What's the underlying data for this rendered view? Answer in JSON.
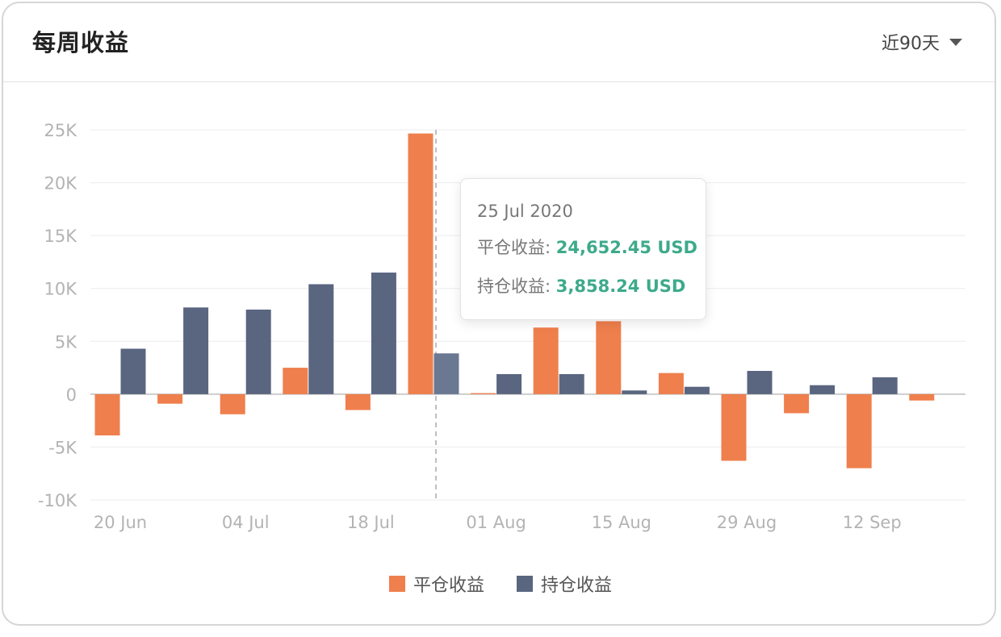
{
  "header": {
    "title": "每周收益",
    "range_label": "近90天"
  },
  "tooltip": {
    "date": "25 Jul 2020",
    "rows": [
      {
        "label": "平仓收益: ",
        "value": "24,652.45 USD"
      },
      {
        "label": "持仓收益: ",
        "value": "3,858.24 USD"
      }
    ]
  },
  "chart_data": {
    "type": "bar",
    "grid": true,
    "legend_position": "bottom-center",
    "ylim": [
      -10000,
      25000
    ],
    "y_ticks": [
      -10000,
      -5000,
      0,
      5000,
      10000,
      15000,
      20000,
      25000
    ],
    "y_tick_labels": [
      "-10K",
      "-5K",
      "0",
      "5K",
      "10K",
      "15K",
      "20K",
      "25K"
    ],
    "x_tick_labels": [
      "20 Jun",
      "04 Jul",
      "18 Jul",
      "01 Aug",
      "15 Aug",
      "29 Aug",
      "12 Sep"
    ],
    "x_tick_week_index": [
      0,
      2,
      4,
      6,
      8,
      10,
      12
    ],
    "highlight_index": 5,
    "series": [
      {
        "name": "平仓收益",
        "color": "#ef7f4d",
        "values": [
          -3900,
          -900,
          -1900,
          2500,
          -1500,
          24652.45,
          100,
          6300,
          6900,
          2000,
          -6300,
          -1800,
          -7000,
          -600
        ]
      },
      {
        "name": "持仓收益",
        "color": "#5a6580",
        "highlight_color": "#6b7892",
        "values": [
          4300,
          8200,
          8000,
          10400,
          11500,
          3858.24,
          1900,
          1900,
          350,
          700,
          2200,
          850,
          1600,
          0
        ]
      }
    ]
  }
}
